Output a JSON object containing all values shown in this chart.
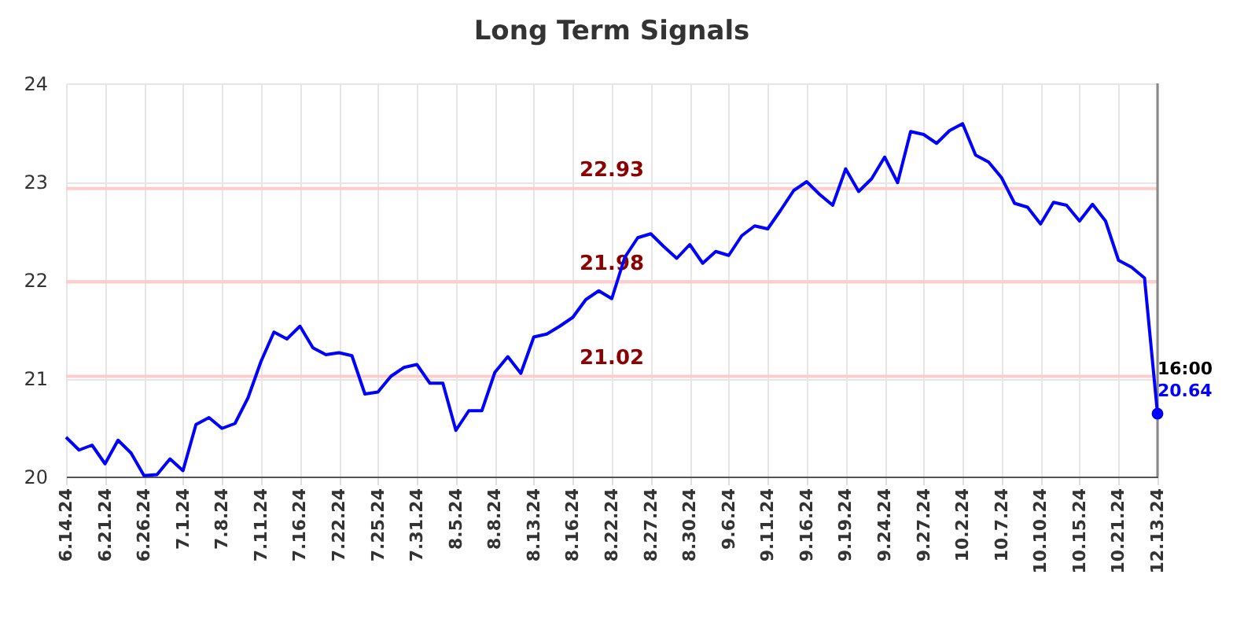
{
  "chart_data": {
    "type": "line",
    "title": "Long Term Signals",
    "categories": [
      "6.14.24",
      null,
      null,
      "6.21.24",
      null,
      null,
      "6.26.24",
      null,
      null,
      "7.1.24",
      null,
      null,
      "7.8.24",
      null,
      null,
      "7.11.24",
      null,
      null,
      "7.16.24",
      null,
      null,
      "7.22.24",
      null,
      null,
      "7.25.24",
      null,
      null,
      "7.31.24",
      null,
      null,
      "8.5.24",
      null,
      null,
      "8.8.24",
      null,
      null,
      "8.13.24",
      null,
      null,
      "8.16.24",
      null,
      null,
      "8.22.24",
      null,
      null,
      "8.27.24",
      null,
      null,
      "8.30.24",
      null,
      null,
      "9.6.24",
      null,
      null,
      "9.11.24",
      null,
      null,
      "9.16.24",
      null,
      null,
      "9.19.24",
      null,
      null,
      "9.24.24",
      null,
      null,
      "9.27.24",
      null,
      null,
      "10.2.24",
      null,
      null,
      "10.7.24",
      null,
      null,
      "10.10.24",
      null,
      null,
      "10.15.24",
      null,
      null,
      "10.21.24",
      null,
      null,
      "12.13.24"
    ],
    "series": [
      {
        "color": "#0000ff",
        "values": [
          20.4,
          20.27,
          20.32,
          20.13,
          20.37,
          20.24,
          20.01,
          20.02,
          20.18,
          20.06,
          20.53,
          20.6,
          20.49,
          20.54,
          20.8,
          21.17,
          21.47,
          21.4,
          21.53,
          21.31,
          21.24,
          21.26,
          21.23,
          20.84,
          20.86,
          21.02,
          21.11,
          21.14,
          20.95,
          20.95,
          20.47,
          20.67,
          20.67,
          21.06,
          21.22,
          21.05,
          21.42,
          21.45,
          21.53,
          21.62,
          21.8,
          21.89,
          21.81,
          22.23,
          22.43,
          22.47,
          22.34,
          22.22,
          22.36,
          22.17,
          22.29,
          22.25,
          22.45,
          22.55,
          22.52,
          22.71,
          22.91,
          23.0,
          22.87,
          22.76,
          23.13,
          22.9,
          23.03,
          23.25,
          22.99,
          23.51,
          23.48,
          23.39,
          23.52,
          23.59,
          23.27,
          23.2,
          23.04,
          22.78,
          22.74,
          22.57,
          22.79,
          22.76,
          22.6,
          22.77,
          22.6,
          22.2,
          22.13,
          22.02,
          20.64
        ]
      },
      {
        "type": "scatter",
        "color": "#0000ff",
        "x": [
          "12.13.24"
        ],
        "values": [
          20.64
        ]
      }
    ],
    "ylim": [
      20,
      24
    ],
    "yticks": [
      20,
      21,
      22,
      23,
      24
    ],
    "grid": true,
    "ref_lines": [
      {
        "axis": "y",
        "value": 22.93,
        "label": "22.93",
        "color": "#ffcccc"
      },
      {
        "axis": "y",
        "value": 21.98,
        "label": "21.98",
        "color": "#ffcccc"
      },
      {
        "axis": "y",
        "value": 21.02,
        "label": "21.02",
        "color": "#ffcccc"
      }
    ],
    "annotations": [
      {
        "text": "16:00",
        "x": "12.13.24",
        "y": 20.64
      },
      {
        "text": "20.64",
        "x": "12.13.24",
        "y": 20.64
      }
    ]
  }
}
